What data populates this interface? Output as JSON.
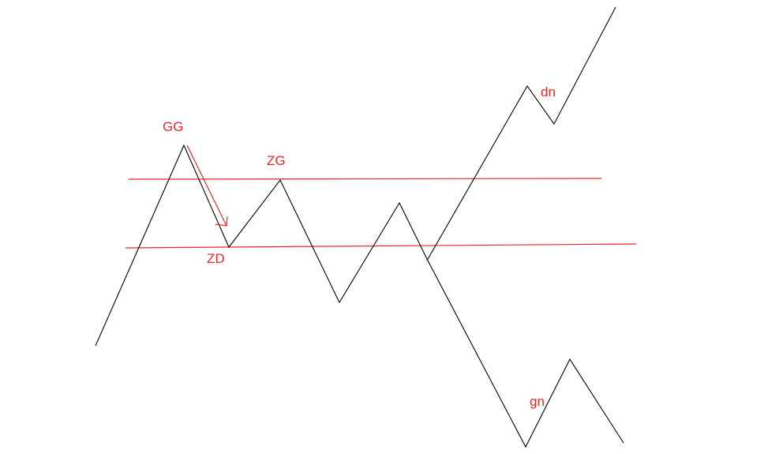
{
  "diagram": {
    "labels": {
      "gg": "GG",
      "zg": "ZG",
      "zd": "ZD",
      "dn": "dn",
      "gn": "gn"
    },
    "colors": {
      "background": "#ffffff",
      "price_path": "#000000",
      "annotation": "#e8262a"
    }
  }
}
